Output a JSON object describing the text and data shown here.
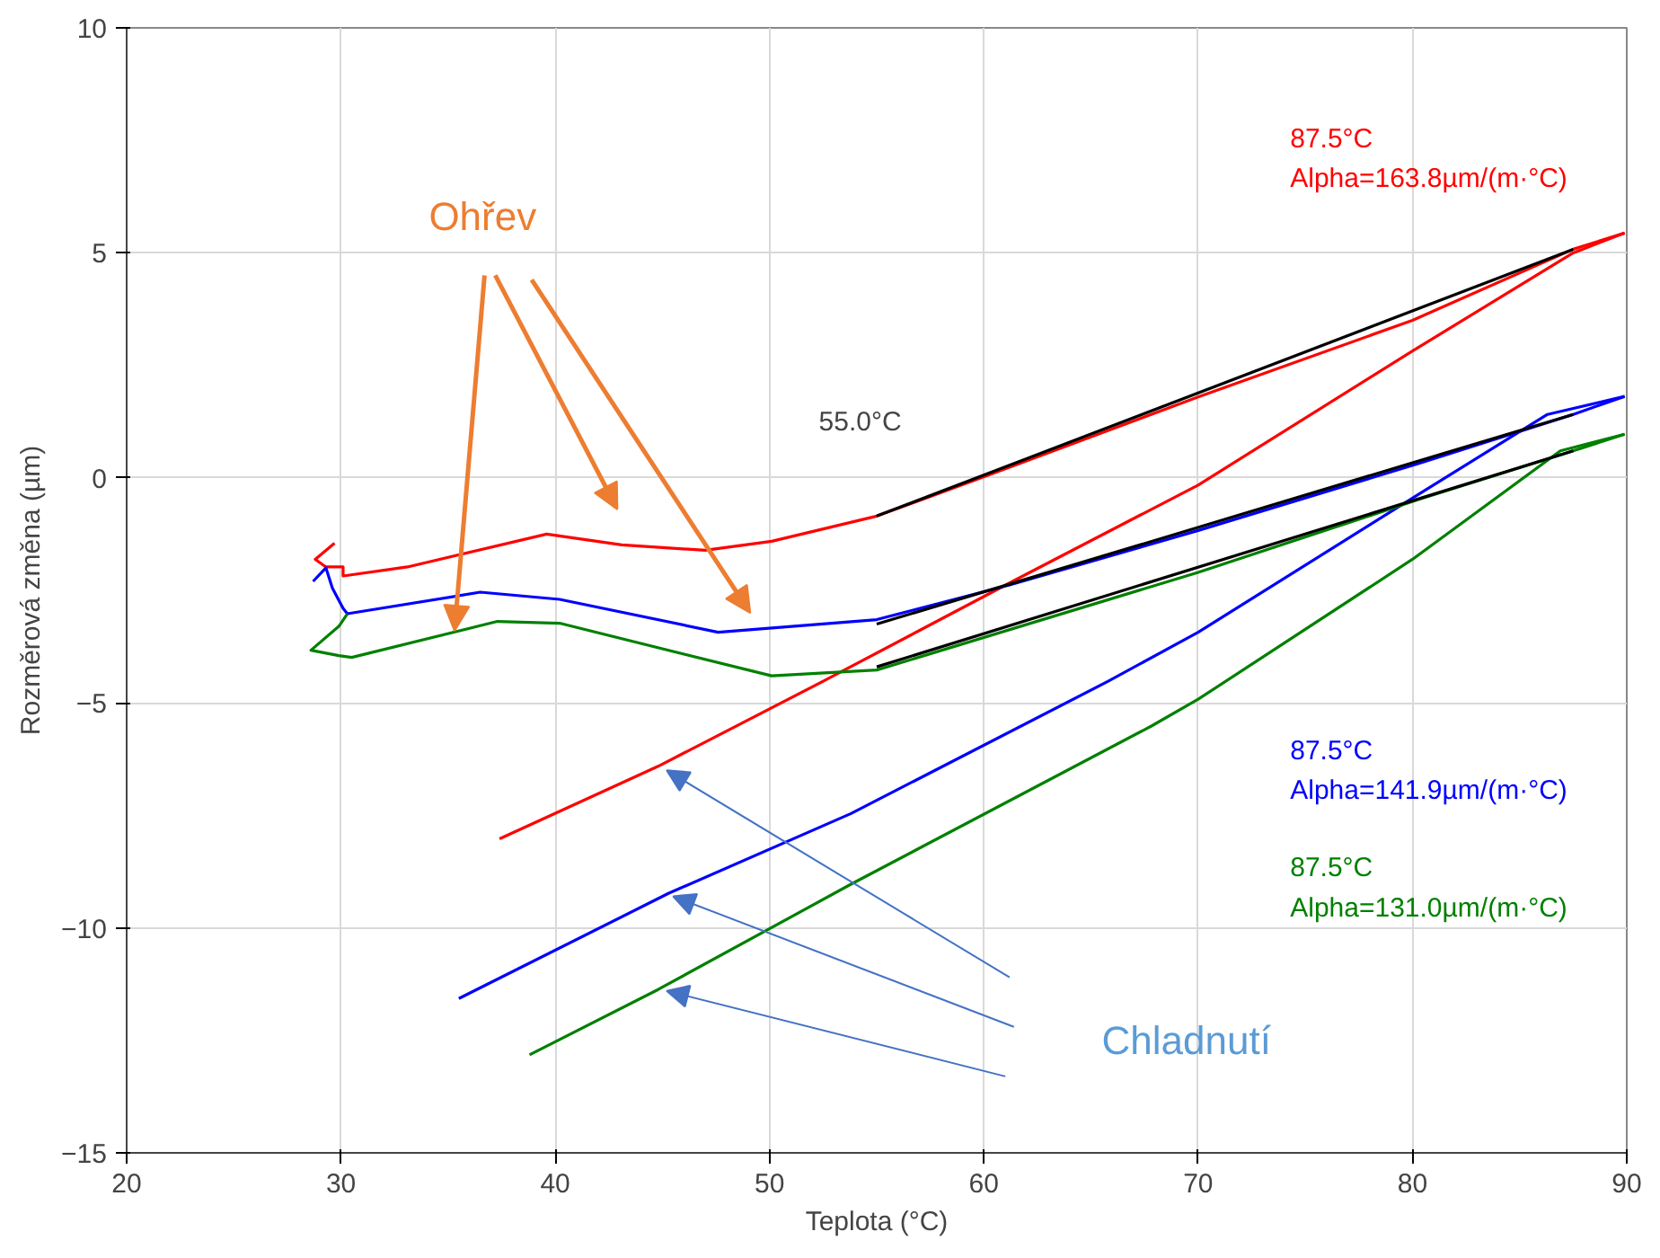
{
  "chart_data": {
    "type": "line",
    "xlabel": "Teplota (°C)",
    "ylabel": "Rozměrová změna (µm)",
    "xlim": [
      20,
      90
    ],
    "ylim": [
      -15,
      10
    ],
    "xticks": [
      20,
      30,
      40,
      50,
      60,
      70,
      80,
      90
    ],
    "yticks": [
      -15,
      -10,
      -5,
      0,
      5,
      10
    ],
    "grid": true,
    "marker": "none",
    "line_style": "solid",
    "series": [
      {
        "name": "87.5°C\nAlpha=163.8µm/(m·°C)",
        "color": "#ff0000",
        "x": [
          29.7,
          28.8,
          29.3,
          30.1,
          30.1,
          33.1,
          39.6,
          43.1,
          47.0,
          50.1,
          55.0,
          60.1,
          70.0,
          80.0,
          87.5,
          89.9
        ],
        "values": [
          -1.45,
          -1.81,
          -1.98,
          -1.98,
          -2.18,
          -1.98,
          -1.25,
          -1.49,
          -1.61,
          -1.41,
          -0.85,
          0.04,
          1.8,
          3.5,
          5.08,
          5.44
        ]
      },
      {
        "color": "#ff0000",
        "x": [
          89.9,
          87.5,
          80.0,
          70.0,
          61.5,
          52.5,
          44.8,
          37.4
        ],
        "values": [
          5.44,
          5.0,
          2.82,
          -0.16,
          -2.26,
          -4.52,
          -6.41,
          -8.02
        ]
      },
      {
        "name": "87.5°C\nAlpha=141.9µm/(m·°C)",
        "color": "#0000ff",
        "x": [
          28.7,
          29.3,
          29.6,
          30.1,
          30.3,
          36.5,
          40.2,
          47.6,
          55.0,
          61.2,
          70.0,
          80.3,
          87.5,
          89.9
        ],
        "values": [
          -2.3,
          -2.0,
          -2.45,
          -2.9,
          -3.02,
          -2.54,
          -2.7,
          -3.43,
          -3.15,
          -2.38,
          -1.17,
          0.32,
          1.41,
          1.81
        ]
      },
      {
        "color": "#0000ff",
        "x": [
          89.9,
          86.3,
          80.3,
          70.0,
          65.8,
          53.8,
          45.3,
          35.5
        ],
        "values": [
          1.81,
          1.41,
          -0.36,
          -3.43,
          -4.52,
          -7.46,
          -9.23,
          -11.57
        ]
      },
      {
        "name": "87.5°C\nAlpha=131.0µm/(m·°C)",
        "color": "#008000",
        "x": [
          30.3,
          29.9,
          28.6,
          29.9,
          30.5,
          37.3,
          40.2,
          50.1,
          55.0,
          70.0,
          80.3,
          87.5,
          89.9
        ],
        "values": [
          -3.02,
          -3.3,
          -3.83,
          -3.95,
          -3.99,
          -3.19,
          -3.23,
          -4.4,
          -4.27,
          -2.1,
          -0.48,
          0.6,
          0.97
        ]
      },
      {
        "color": "#008000",
        "x": [
          89.9,
          86.9,
          80.0,
          70.0,
          67.8,
          53.8,
          44.8,
          38.8
        ],
        "values": [
          0.97,
          0.6,
          -1.81,
          -4.92,
          -5.52,
          -9.03,
          -11.37,
          -12.82
        ]
      },
      {
        "color": "#000000",
        "x": [
          55.0,
          87.5
        ],
        "values": [
          -0.85,
          5.08
        ]
      },
      {
        "color": "#000000",
        "x": [
          55.0,
          87.5
        ],
        "values": [
          -3.25,
          1.41
        ]
      },
      {
        "color": "#000000",
        "x": [
          55.0,
          87.5
        ],
        "values": [
          -4.2,
          0.6
        ]
      }
    ],
    "annotations": [
      "55.0°C",
      {
        "text": "Ohřev",
        "x": 35.3,
        "y": -3.4
      },
      "Chladnutí"
    ]
  }
}
